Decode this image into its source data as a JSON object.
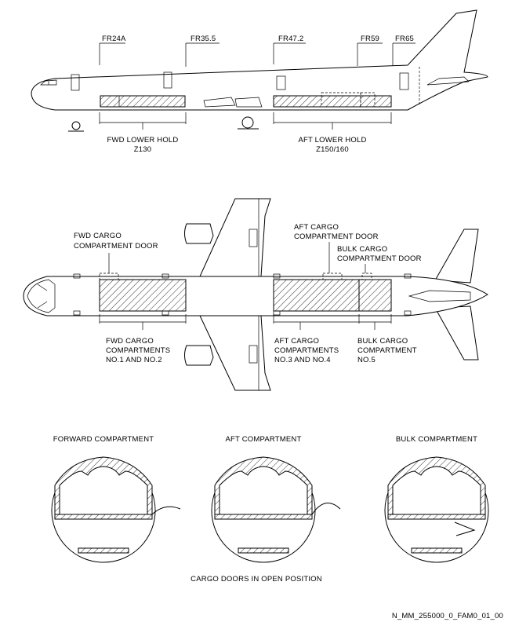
{
  "side_view": {
    "frames": [
      "FR24A",
      "FR35.5",
      "FR47.2",
      "FR59",
      "FR65"
    ],
    "fwd_hold": {
      "line1": "FWD LOWER HOLD",
      "line2": "Z130"
    },
    "aft_hold": {
      "line1": "AFT LOWER HOLD",
      "line2": "Z150/160"
    }
  },
  "plan_view": {
    "fwd_door": {
      "line1": "FWD CARGO",
      "line2": "COMPARTMENT DOOR"
    },
    "aft_door": {
      "line1": "AFT CARGO",
      "line2": "COMPARTMENT DOOR"
    },
    "bulk_door": {
      "line1": "BULK CARGO",
      "line2": "COMPARTMENT DOOR"
    },
    "fwd_comp": {
      "line1": "FWD CARGO",
      "line2": "COMPARTMENTS",
      "line3": "NO.1 AND NO.2"
    },
    "aft_comp": {
      "line1": "AFT CARGO",
      "line2": "COMPARTMENTS",
      "line3": "NO.3 AND NO.4"
    },
    "bulk_comp": {
      "line1": "BULK CARGO",
      "line2": "COMPARTMENT",
      "line3": "NO.5"
    }
  },
  "sections": {
    "forward": "FORWARD COMPARTMENT",
    "aft": "AFT COMPARTMENT",
    "bulk": "BULK COMPARTMENT"
  },
  "caption": "CARGO DOORS IN OPEN POSITION",
  "reference": "N_MM_255000_0_FAM0_01_00"
}
